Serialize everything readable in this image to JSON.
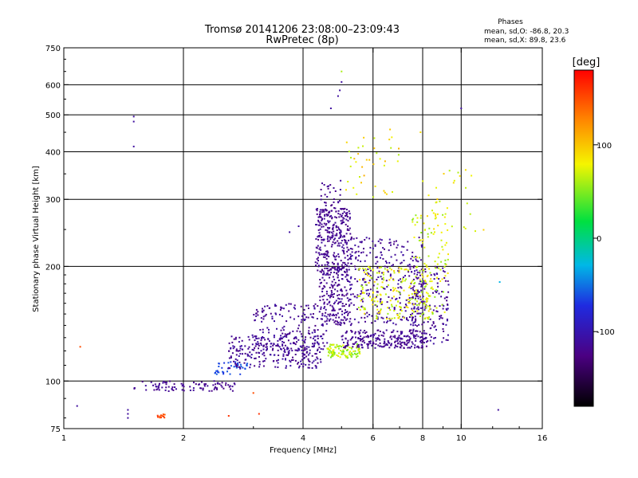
{
  "chart_data": {
    "type": "scatter",
    "title": "Tromsø 20141206 23:08:00–23:09:43",
    "subtitle": "RwPretec (8p)",
    "stats": {
      "heading": "Phases",
      "line1": "mean, sd,O: -86.8, 20.3",
      "line2": "mean, sd,X:  89.8, 23.6"
    },
    "xlabel": "Frequency [MHz]",
    "ylabel": "Stationary phase Virtual Height [km]",
    "x_scale": "log",
    "y_scale": "log",
    "xlim": [
      1,
      16
    ],
    "ylim": [
      75,
      750
    ],
    "x_ticks": [
      1,
      2,
      4,
      6,
      8,
      10,
      16
    ],
    "x_tick_labels": [
      "1",
      "2",
      "4",
      "6",
      "8",
      "10",
      "16"
    ],
    "y_ticks": [
      75,
      100,
      200,
      300,
      400,
      500,
      600,
      750
    ],
    "y_tick_labels": [
      "75",
      "100",
      "200",
      "300",
      "400",
      "500",
      "600",
      "750"
    ],
    "x_gridlines": [
      2,
      4,
      6,
      8,
      10
    ],
    "y_gridlines": [
      100,
      200,
      300,
      400,
      500,
      600
    ],
    "grid": true,
    "colorbar": {
      "label": "[deg]",
      "range": [
        -180,
        180
      ],
      "ticks": [
        100,
        0,
        -100
      ],
      "tick_labels": [
        "100",
        "0",
        "-100"
      ]
    },
    "clusters": [
      {
        "f": [
          1.5,
          2.7
        ],
        "h": [
          94,
          100
        ],
        "phase": [
          -125,
          -110
        ],
        "n": 90
      },
      {
        "f": [
          2.4,
          2.9
        ],
        "h": [
          104,
          113
        ],
        "phase": [
          -70,
          -55
        ],
        "n": 40
      },
      {
        "f": [
          1.72,
          1.8
        ],
        "h": [
          80,
          82
        ],
        "phase": [
          140,
          160
        ],
        "n": 12
      },
      {
        "f": [
          2.6,
          4.5
        ],
        "h": [
          108,
          132
        ],
        "phase": [
          -125,
          -105
        ],
        "n": 260
      },
      {
        "f": [
          3.0,
          4.6
        ],
        "h": [
          120,
          160
        ],
        "phase": [
          -125,
          -105
        ],
        "n": 180
      },
      {
        "f": [
          4.3,
          5.3
        ],
        "h": [
          195,
          285
        ],
        "phase": [
          -125,
          -110
        ],
        "n": 260
      },
      {
        "f": [
          4.4,
          5.2
        ],
        "h": [
          140,
          200
        ],
        "phase": [
          -125,
          -110
        ],
        "n": 200
      },
      {
        "f": [
          4.6,
          5.6
        ],
        "h": [
          115,
          125
        ],
        "phase": [
          40,
          80
        ],
        "n": 100
      },
      {
        "f": [
          5.0,
          8.2
        ],
        "h": [
          122,
          136
        ],
        "phase": [
          -125,
          -110
        ],
        "n": 240
      },
      {
        "f": [
          5.2,
          8.0
        ],
        "h": [
          140,
          240
        ],
        "phase": [
          -125,
          -105
        ],
        "n": 300
      },
      {
        "f": [
          7.5,
          9.3
        ],
        "h": [
          125,
          200
        ],
        "phase": [
          -125,
          -105
        ],
        "n": 160
      },
      {
        "f": [
          5.5,
          8.5
        ],
        "h": [
          145,
          200
        ],
        "phase": [
          55,
          95
        ],
        "n": 200
      },
      {
        "f": [
          7.5,
          9.3
        ],
        "h": [
          150,
          280
        ],
        "phase": [
          50,
          90
        ],
        "n": 90
      },
      {
        "f": [
          5.0,
          7.0
        ],
        "h": [
          300,
          460
        ],
        "phase": [
          60,
          110
        ],
        "n": 40
      },
      {
        "f": [
          4.4,
          5.0
        ],
        "h": [
          230,
          340
        ],
        "phase": [
          -125,
          -110
        ],
        "n": 70
      },
      {
        "f": [
          8.0,
          11.5
        ],
        "h": [
          240,
          360
        ],
        "phase": [
          60,
          100
        ],
        "n": 35
      }
    ],
    "points": [
      {
        "f": 1.5,
        "h": 495,
        "phase": -110
      },
      {
        "f": 1.5,
        "h": 480,
        "phase": -110
      },
      {
        "f": 1.5,
        "h": 413,
        "phase": -110
      },
      {
        "f": 1.45,
        "h": 82,
        "phase": -110
      },
      {
        "f": 1.45,
        "h": 84,
        "phase": -110
      },
      {
        "f": 1.45,
        "h": 80,
        "phase": -110
      },
      {
        "f": 1.08,
        "h": 86,
        "phase": -110
      },
      {
        "f": 1.1,
        "h": 123,
        "phase": 150
      },
      {
        "f": 3.1,
        "h": 82,
        "phase": 160
      },
      {
        "f": 2.6,
        "h": 81,
        "phase": 160
      },
      {
        "f": 3.0,
        "h": 93,
        "phase": 150
      },
      {
        "f": 4.7,
        "h": 520,
        "phase": -110
      },
      {
        "f": 4.9,
        "h": 560,
        "phase": -110
      },
      {
        "f": 4.95,
        "h": 580,
        "phase": -110
      },
      {
        "f": 5.0,
        "h": 610,
        "phase": -110
      },
      {
        "f": 5.0,
        "h": 650,
        "phase": 60
      },
      {
        "f": 10.0,
        "h": 520,
        "phase": -110
      },
      {
        "f": 12.5,
        "h": 182,
        "phase": -30
      },
      {
        "f": 12.4,
        "h": 84,
        "phase": -110
      },
      {
        "f": 3.7,
        "h": 246,
        "phase": -110
      },
      {
        "f": 3.9,
        "h": 255,
        "phase": -110
      },
      {
        "f": 7.9,
        "h": 450,
        "phase": 90
      }
    ]
  }
}
